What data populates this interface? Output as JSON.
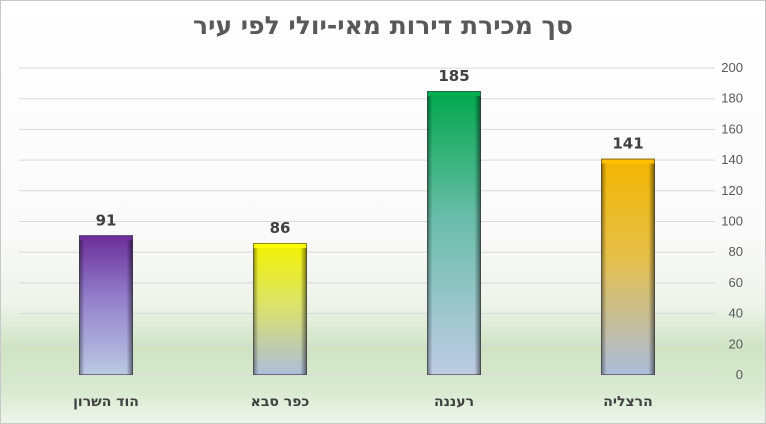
{
  "chart_data": {
    "type": "bar",
    "title": "סך מכירת דירות מאי-יולי לפי עיר",
    "categories": [
      "הרצליה",
      "רעננה",
      "כפר סבא",
      "הוד השרון"
    ],
    "values": [
      141,
      185,
      86,
      91
    ],
    "data_labels": [
      "141",
      "185",
      "86",
      "91"
    ],
    "ylim": [
      0,
      200
    ],
    "yticks": [
      0,
      20,
      40,
      60,
      80,
      100,
      120,
      140,
      160,
      180,
      200
    ],
    "y_axis_side": "right",
    "category_order": "right-to-left",
    "grid": true,
    "legend": "none",
    "bar_colors": [
      {
        "top": "#ffc000",
        "mid": "#f2c94c",
        "bottom": "#b4c7e7"
      },
      {
        "top": "#00b050",
        "mid": "#6fc7b2",
        "bottom": "#c9d7f0"
      },
      {
        "top": "#ffff00",
        "mid": "#e9f06a",
        "bottom": "#b4c7e7"
      },
      {
        "top": "#7030a0",
        "mid": "#9a86d6",
        "bottom": "#c5d3f0"
      }
    ]
  }
}
